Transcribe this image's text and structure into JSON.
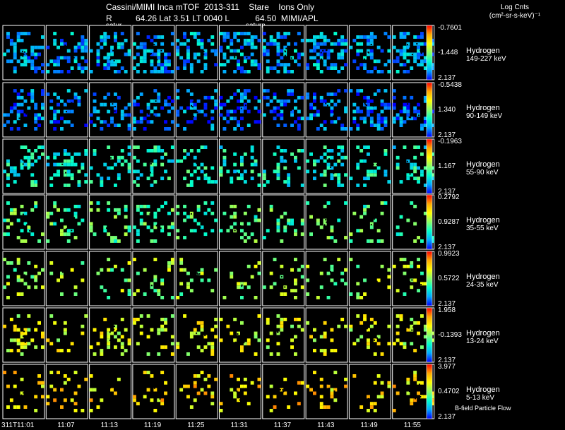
{
  "header": {
    "title_line": "Cassini/MIMI Inca mTOF  2013-311    Stare    Ions Only",
    "info_line": "R          64.26 Lat 3.51 LT 0040 L           64.50  MIMI/APL",
    "units_line1": "Log Cnts",
    "units_line2": "(cm²-sr-s-keV)⁻¹",
    "saturn_labels": [
      "satur",
      "saturn"
    ]
  },
  "footer": {
    "bfield_label": "B-field Particle Flow"
  },
  "chart_data": {
    "type": "heatmap",
    "description_rows": "7 energy channels x 10 time-step images",
    "time_labels": [
      "311T11:01",
      "11:07",
      "11:13",
      "11:19",
      "11:25",
      "11:31",
      "11:37",
      "11:43",
      "11:49",
      "11:55"
    ],
    "colorbar_colors": [
      "#0000ff",
      "#00aaff",
      "#00ffcc",
      "#88ff66",
      "#ffff00",
      "#ffaa00",
      "#ff0000"
    ],
    "rows": [
      {
        "species": "Hydrogen",
        "energy": "149-227 keV",
        "cb_max": "-0.7601",
        "cb_mid": "-1.448",
        "cb_min": "2.137",
        "level": 0.18,
        "density": 0.45
      },
      {
        "species": "Hydrogen",
        "energy": "90-149 keV",
        "cb_max": "-0.5438",
        "cb_mid": "1.340",
        "cb_min": "2.137",
        "level": 0.12,
        "density": 0.35
      },
      {
        "species": "Hydrogen",
        "energy": "55-90 keV",
        "cb_max": "-0.1963",
        "cb_mid": "1.167",
        "cb_min": "2.137",
        "level": 0.32,
        "density": 0.28
      },
      {
        "species": "Hydrogen",
        "energy": "35-55 keV",
        "cb_max": "0.2792",
        "cb_mid": "0.9287",
        "cb_min": "2.137",
        "level": 0.42,
        "density": 0.2
      },
      {
        "species": "Hydrogen",
        "energy": "24-35 keV",
        "cb_max": "0.9923",
        "cb_mid": "0.5722",
        "cb_min": "2.137",
        "level": 0.52,
        "density": 0.14
      },
      {
        "species": "Hydrogen",
        "energy": "13-24 keV",
        "cb_max": "1.958",
        "cb_mid": "-0.1393",
        "cb_min": "2.137",
        "level": 0.62,
        "density": 0.2
      },
      {
        "species": "Hydrogen",
        "energy": "5-13 keV",
        "cb_max": "3.977",
        "cb_mid": "0.4702",
        "cb_min": "2.137",
        "level": 0.72,
        "density": 0.14
      }
    ]
  }
}
